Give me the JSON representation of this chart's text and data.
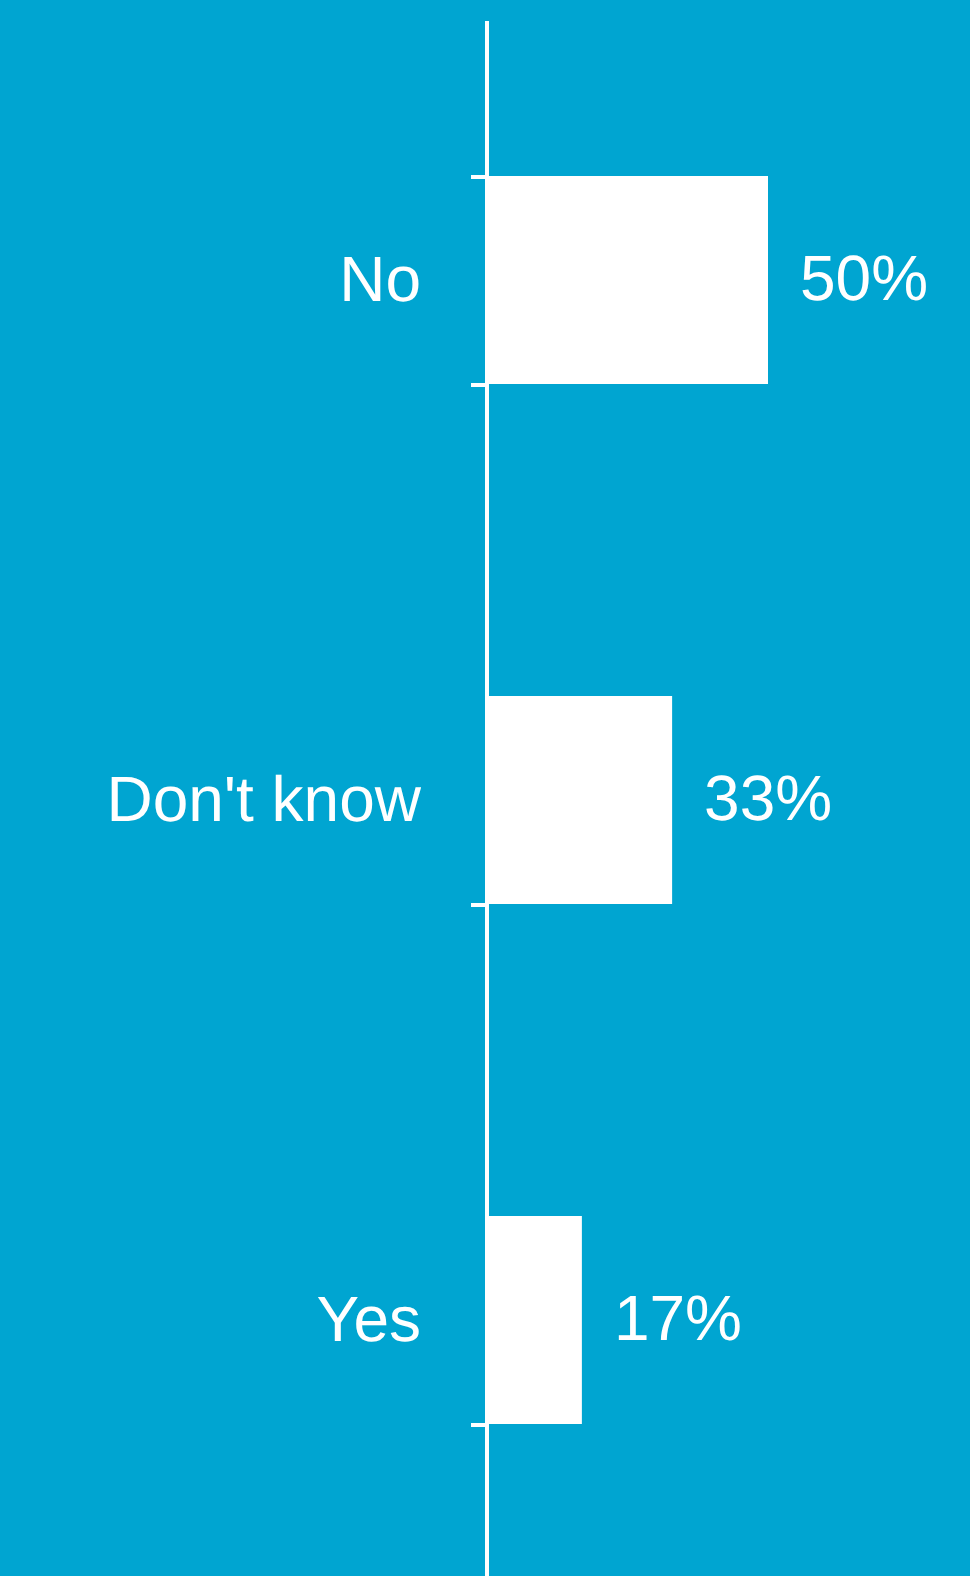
{
  "chart_data": {
    "type": "bar",
    "orientation": "horizontal",
    "categories": [
      "No",
      "Don't know",
      "Yes"
    ],
    "values": [
      50,
      33,
      17
    ],
    "color": "#ffffff",
    "value_labels": [
      "50%",
      "33%",
      "17%"
    ]
  }
}
